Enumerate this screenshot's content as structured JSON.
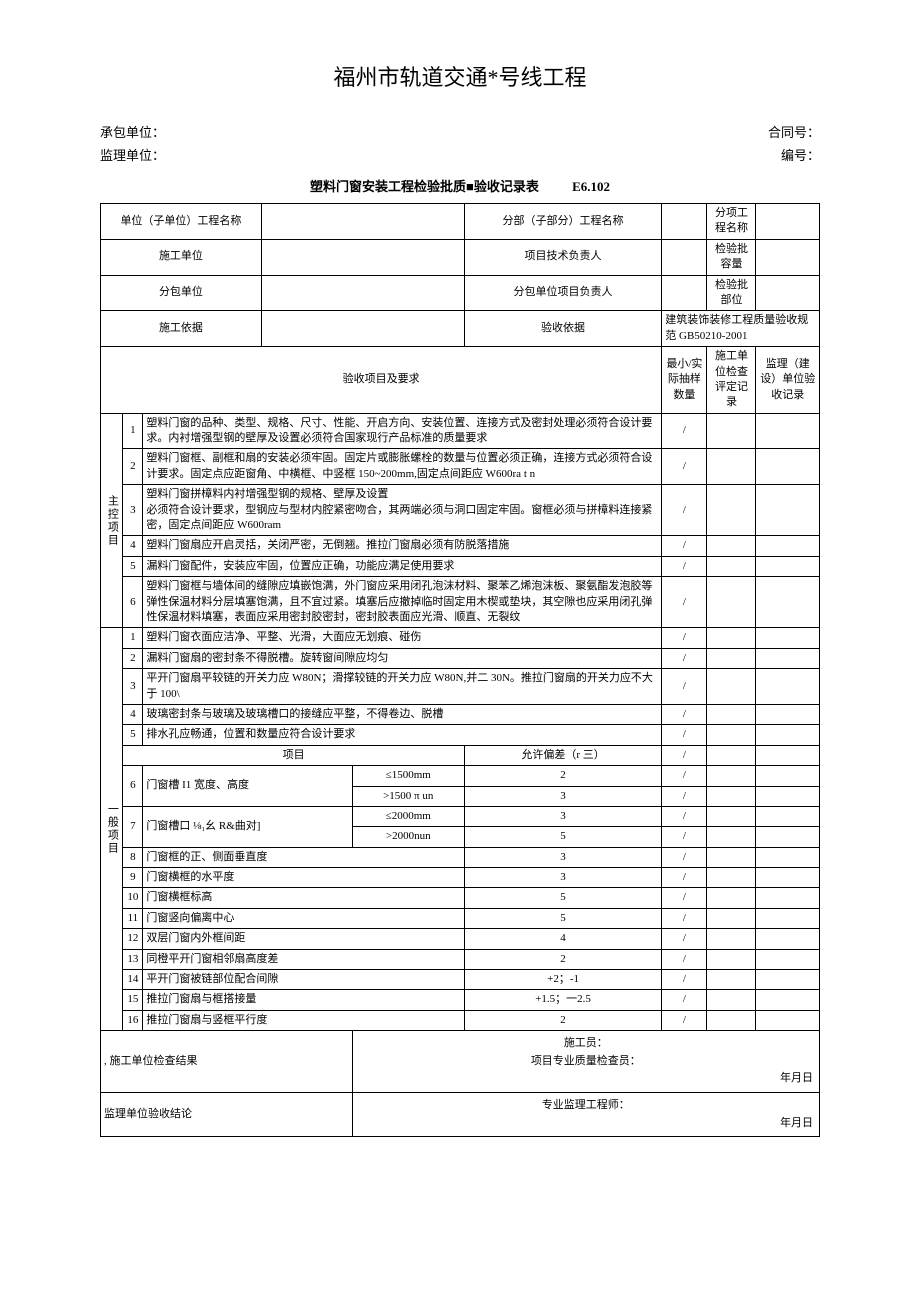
{
  "page_title": "福州市轨道交通*号线工程",
  "header": {
    "contractor_label": "承包单位：",
    "contract_no_label": "合同号：",
    "supervisor_label": "监理单位：",
    "serial_no_label": "编号："
  },
  "subtitle": "塑料门窗安装工程检验批质■验收记录表",
  "form_code": "E6.102",
  "meta": {
    "unit_eng_label": "单位（子单位）工程名称",
    "subpart_eng_label": "分部（子部分）工程名称",
    "subitem_eng_label": "分项工程名称",
    "construction_unit_label": "施工单位",
    "proj_tech_lead_label": "项目技术负责人",
    "lot_capacity_label": "检验批容量",
    "subcontract_unit_label": "分包单位",
    "subcontract_lead_label": "分包单位项目负责人",
    "lot_location_label": "检验批部位",
    "construction_basis_label": "施工依据",
    "acceptance_basis_label": "验收依据",
    "acceptance_basis_value": "建筑装饰装修工程质量验收规范 GB50210-2001"
  },
  "columns": {
    "item_req": "验收项目及要求",
    "sample": "最小/实际抽样数量",
    "check": "施工单位检查评定记录",
    "supervise": "监理（建设）单位验收记录"
  },
  "main_group_label": "主控项目",
  "main_items": [
    "塑料门窗的品种、类型、规格、尺寸、性能、开启方向、安装位置、连接方式及密封处理必须符合设计要求。内衬增强型钢的壁厚及设置必须符合国家现行产品标准的质量要求",
    "塑料门窗框、副框和扇的安装必须牢固。固定片或膨胀螺栓的数量与位置必须正确，连接方式必须符合设计要求。固定点应距窗角、中横框、中竖框 150~200mm,固定点间距应 W600ra t n",
    "塑料门窗拼樟料内衬增强型钢的规格、壁厚及设置\n必须符合设计要求，型钢应与型材内腔紧密吻合，其两端必须与洞口固定牢固。窗框必须与拼樟料连接紧密，固定点间距应 W600ram",
    "塑料门窗扇应开启灵括，关闭严密，无倒翘。推拉门窗扇必须有防脱落措施",
    "漏料门窗配件，安装应牢固，位置应正确，功能应满足使用要求",
    "塑料门窗框与墙体间的缝隙应填嵌饱满，外门窗应采用闭孔泡沫材料、聚苯乙烯泡沫板、聚氨酯发泡胶等弹性保温材料分层填塞饱满，且不宜过紧。填塞后应撤掉临时固定用木楔或垫块，其空隙也应采用闭孔弹性保温材料填塞，表面应采用密封胶密封，密封胶表面应光滑、顺直、无裂纹"
  ],
  "general_group_label": "一般项目",
  "general_simple": [
    "塑料门窗衣面应洁净、平整、光滑，大面应无划痕、碰伤",
    "漏料门窗扇的密封条不得脱槽。旋转窗间隙应均匀",
    "平开门窗扇平较链的开关力应 W80N；滑撑较链的开关力应 W80N,并二 30N。推拉门窗扇的开关力应不大于 100\\",
    "玻璃密封条与玻璃及玻璃槽口的接缝应平整，不得卷边、脱槽",
    "排水孔应畅通，位置和数量应符合设计要求"
  ],
  "dev_header": {
    "item": "项目",
    "tol": "允许偏差（r 三）"
  },
  "dev_rows": [
    {
      "no": "6",
      "name": "门窗槽 I1 宽度、高度",
      "sub": "≤1500mm",
      "tol": "2"
    },
    {
      "no": "",
      "name": "",
      "sub": ">1500 π un",
      "tol": "3"
    },
    {
      "no": "7",
      "name": "门窗槽口      ⅛₁幺 R&曲对]",
      "sub": "≤2000mm",
      "tol": "3"
    },
    {
      "no": "",
      "name": "",
      "sub": ">2000nun",
      "tol": "5"
    },
    {
      "no": "8",
      "name": "门窗框的正、侧面垂直度",
      "sub": "",
      "tol": "3"
    },
    {
      "no": "9",
      "name": "门窗横框的水平度",
      "sub": "",
      "tol": "3"
    },
    {
      "no": "10",
      "name": "门窗横框标高",
      "sub": "",
      "tol": "5"
    },
    {
      "no": "11",
      "name": "门窗竖向偏离中心",
      "sub": "",
      "tol": "5"
    },
    {
      "no": "12",
      "name": "双层门窗内外框间距",
      "sub": "",
      "tol": "4"
    },
    {
      "no": "13",
      "name": "同橙平开门窗相邻扇高度差",
      "sub": "",
      "tol": "2"
    },
    {
      "no": "14",
      "name": "平开门窗被链部位配合间隙",
      "sub": "",
      "tol": "+2；-1"
    },
    {
      "no": "15",
      "name": "推拉门窗扇与框搭接量",
      "sub": "",
      "tol": "+1.5；一2.5"
    },
    {
      "no": "16",
      "name": "推拉门窗扇与竖框平行度",
      "sub": "",
      "tol": "2"
    }
  ],
  "footer": {
    "construction_result_label": ", 施工单位检查结果",
    "construction_sig": "施工员：\n项目专业质量检查员：",
    "date_label": "年月日",
    "supervise_result_label": "监理单位验收结论",
    "supervise_sig": "专业监理工程师："
  },
  "slash": "/"
}
